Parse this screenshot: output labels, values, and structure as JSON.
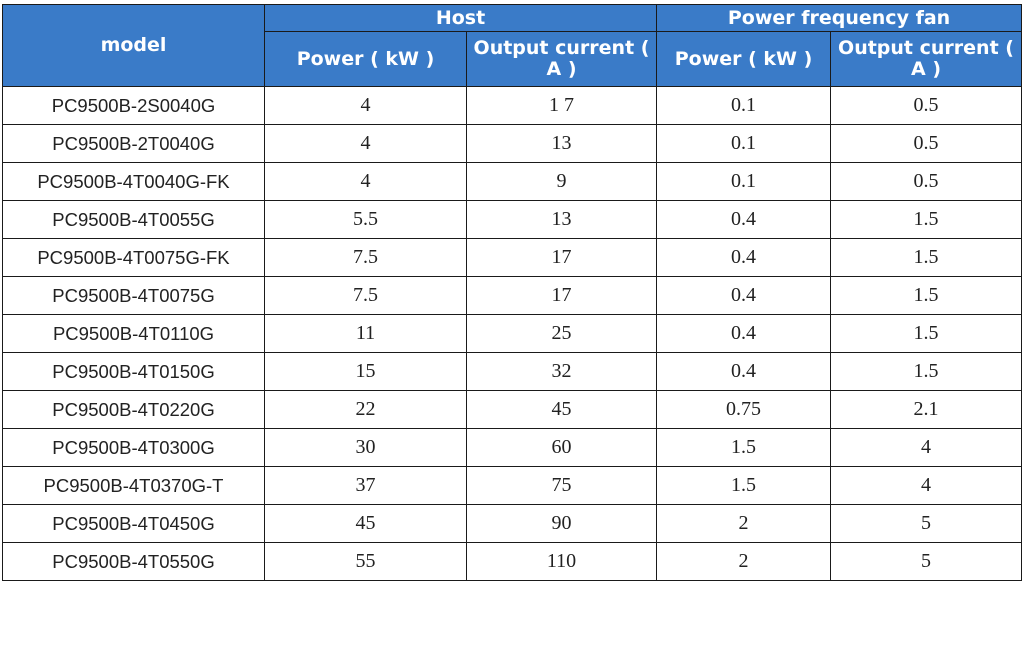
{
  "table": {
    "headers": {
      "model": "model",
      "host": "Host",
      "fan": "Power frequency fan",
      "host_power": "Power ( kW )",
      "host_current": "Output current ( A )",
      "fan_power": "Power ( kW )",
      "fan_current": "Output current ( A )"
    },
    "rows": [
      {
        "model": "PC9500B-2S0040G",
        "host_power": "4",
        "host_current": "1 7",
        "fan_power": "0.1",
        "fan_current": "0.5"
      },
      {
        "model": "PC9500B-2T0040G",
        "host_power": "4",
        "host_current": "13",
        "fan_power": "0.1",
        "fan_current": "0.5"
      },
      {
        "model": "PC9500B-4T0040G-FK",
        "host_power": "4",
        "host_current": "9",
        "fan_power": "0.1",
        "fan_current": "0.5"
      },
      {
        "model": "PC9500B-4T0055G",
        "host_power": "5.5",
        "host_current": "13",
        "fan_power": "0.4",
        "fan_current": "1.5"
      },
      {
        "model": "PC9500B-4T0075G-FK",
        "host_power": "7.5",
        "host_current": "17",
        "fan_power": "0.4",
        "fan_current": "1.5"
      },
      {
        "model": "PC9500B-4T0075G",
        "host_power": "7.5",
        "host_current": "17",
        "fan_power": "0.4",
        "fan_current": "1.5"
      },
      {
        "model": "PC9500B-4T0110G",
        "host_power": "11",
        "host_current": "25",
        "fan_power": "0.4",
        "fan_current": "1.5"
      },
      {
        "model": "PC9500B-4T0150G",
        "host_power": "15",
        "host_current": "32",
        "fan_power": "0.4",
        "fan_current": "1.5"
      },
      {
        "model": "PC9500B-4T0220G",
        "host_power": "22",
        "host_current": "45",
        "fan_power": "0.75",
        "fan_current": "2.1"
      },
      {
        "model": "PC9500B-4T0300G",
        "host_power": "30",
        "host_current": "60",
        "fan_power": "1.5",
        "fan_current": "4"
      },
      {
        "model": "PC9500B-4T0370G-T",
        "host_power": "37",
        "host_current": "75",
        "fan_power": "1.5",
        "fan_current": "4"
      },
      {
        "model": "PC9500B-4T0450G",
        "host_power": "45",
        "host_current": "90",
        "fan_power": "2",
        "fan_current": "5"
      },
      {
        "model": "PC9500B-4T0550G",
        "host_power": "55",
        "host_current": "110",
        "fan_power": "2",
        "fan_current": "5"
      }
    ]
  },
  "colors": {
    "header_bg": "#3a7bc8",
    "header_text": "#ffffff",
    "border": "#1a1a1a",
    "cell_text": "#222222"
  }
}
